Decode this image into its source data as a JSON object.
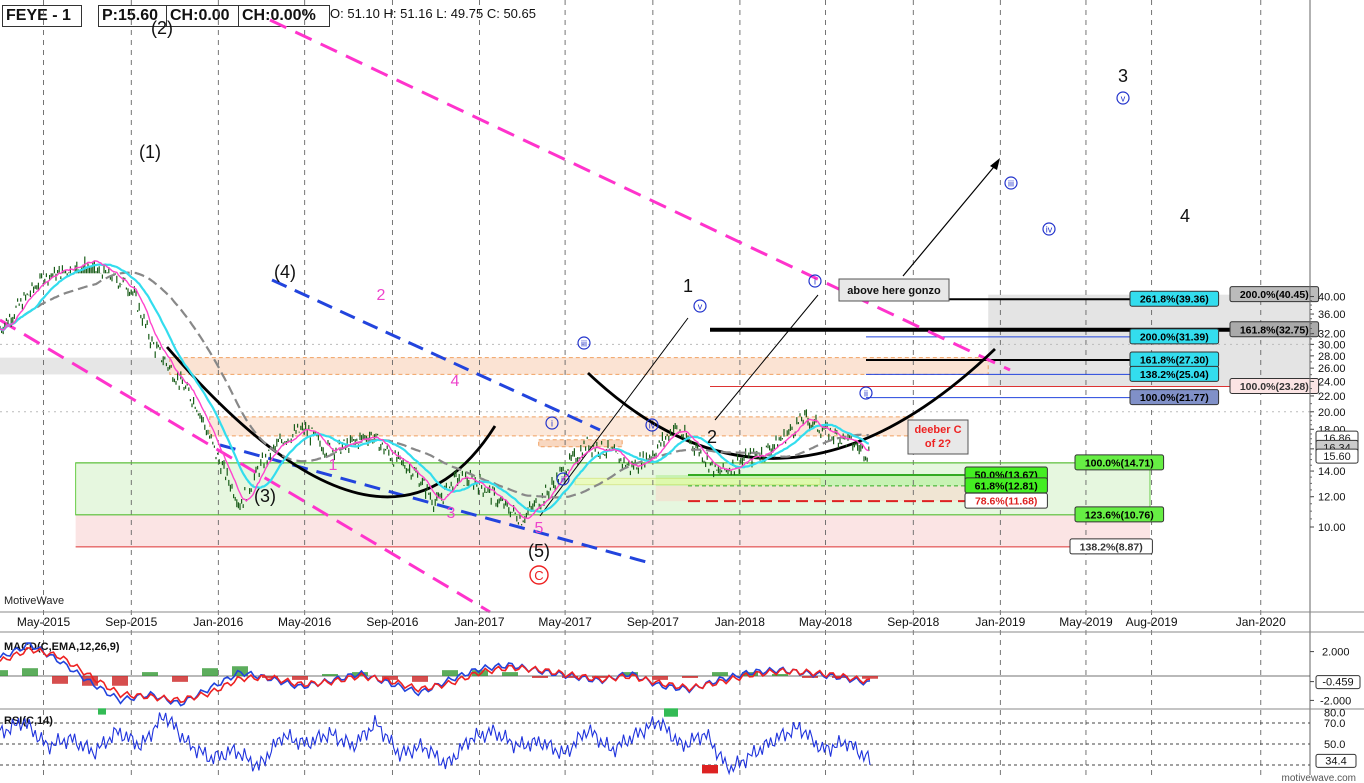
{
  "header": {
    "symbol": "FEYE - 1",
    "price": "P:15.60",
    "change": "CH:0.00",
    "change_pct": "CH:0.00%",
    "ohlc": "O: 51.10  H: 51.16  L: 49.75  C: 50.65"
  },
  "watermark_left": "MotiveWave",
  "watermark_right": "motivewave.com",
  "colors": {
    "price_bar": "#1a5e1a",
    "ma_fast": "#ff44cc",
    "ma_mid": "#33ddee",
    "ma_slow": "#888888",
    "trend_magenta": "#ff33cc",
    "trend_blue": "#2244dd",
    "macd": "#2244dd",
    "signal": "#ee2222",
    "rsi": "#1f33dd",
    "label_wave": "#111111",
    "label_magenta": "#ee44cc",
    "label_circle": "#2233cc"
  },
  "chart_data": [
    {
      "type": "line",
      "panel": "price",
      "scale": "log",
      "x_ticks": [
        "May-2015",
        "Sep-2015",
        "Jan-2016",
        "May-2016",
        "Sep-2016",
        "Jan-2017",
        "May-2017",
        "Sep-2017",
        "Jan-2018",
        "May-2018",
        "Sep-2018",
        "Jan-2019",
        "May-2019",
        "Aug-2019",
        "Jan-2020"
      ],
      "x_range": [
        "2015-03",
        "2020-03"
      ],
      "y_ticks": [
        "10.00",
        "12.00",
        "14.00",
        "16.00",
        "18.00",
        "20.00",
        "22.00",
        "24.00",
        "26.00",
        "28.00",
        "30.00",
        "32.00",
        "36.00",
        "40.00"
      ],
      "ylim": [
        8.3,
        47
      ],
      "price_badges": [
        "16.86",
        "16.34",
        "15.60"
      ],
      "series": [
        {
          "kind": "close",
          "x": [
            "2015-03",
            "2015-05",
            "2015-07",
            "2015-09",
            "2015-10",
            "2015-11",
            "2015-12",
            "2016-01",
            "2016-02",
            "2016-03",
            "2016-04",
            "2016-05",
            "2016-06",
            "2016-07",
            "2016-08",
            "2016-09",
            "2016-10",
            "2016-11",
            "2016-12",
            "2017-01",
            "2017-02",
            "2017-03",
            "2017-04",
            "2017-05",
            "2017-06",
            "2017-07",
            "2017-08",
            "2017-09",
            "2017-10",
            "2017-11",
            "2017-12",
            "2018-01",
            "2018-02",
            "2018-03",
            "2018-04",
            "2018-05",
            "2018-06",
            "2018-07"
          ],
          "values": [
            33,
            45,
            50,
            42,
            30,
            25,
            21,
            15,
            11.5,
            14.5,
            17,
            18,
            16,
            16.3,
            17.5,
            15.2,
            14,
            11.5,
            13.5,
            13,
            11.5,
            10.5,
            12,
            14.2,
            16.5,
            15.8,
            14.3,
            15.6,
            18.2,
            16.2,
            13.8,
            14.8,
            15.6,
            17,
            19.3,
            17.8,
            16.8,
            15.6
          ]
        }
      ],
      "horizontal_levels": [
        {
          "label": "261.8%(39.36)",
          "value": 39.36
        },
        {
          "label": "200.0%(40.45)",
          "value": 40.45
        },
        {
          "label": "161.8%(32.75)",
          "value": 32.75
        },
        {
          "label": "200.0%(31.39)",
          "value": 31.39
        },
        {
          "label": "161.8%(27.30)",
          "value": 27.3
        },
        {
          "label": "138.2%(25.04)",
          "value": 25.04
        },
        {
          "label": "100.0%(23.28)",
          "value": 23.28
        },
        {
          "label": "100.0%(21.77)",
          "value": 21.77
        },
        {
          "label": "100.0%(14.71)",
          "value": 14.71
        },
        {
          "label": "50.0%(13.67)",
          "value": 13.67
        },
        {
          "label": "61.8%(12.81)",
          "value": 12.81
        },
        {
          "label": "78.6%(11.68)",
          "value": 11.68
        },
        {
          "label": "123.6%(10.76)",
          "value": 10.76
        },
        {
          "label": "138.2%(8.87)",
          "value": 8.87
        }
      ],
      "wave_labels": [
        "(1)",
        "(2)",
        "(3)",
        "(4)",
        "(5)",
        "1",
        "2",
        "3",
        "4",
        "1",
        "2",
        "3",
        "4",
        "5",
        "i",
        "ii",
        "iii",
        "iv",
        "v",
        "C"
      ],
      "annotations": [
        "above here gonzo",
        "deeber C",
        "of 2?"
      ]
    },
    {
      "type": "line",
      "panel": "macd",
      "title": "MACD(C,EMA,12,26,9)",
      "y_ticks": [
        "2.000",
        "-0.459",
        "-2.000"
      ],
      "series": [
        {
          "name": "MACD",
          "values": [
            1.5,
            2.6,
            1.2,
            -0.5,
            -2.0,
            -1.5,
            -2.3,
            -1.0,
            0.3,
            -0.2,
            -0.9,
            -0.4,
            0.2,
            -0.6,
            -1.4,
            -0.3,
            0.6,
            0.9,
            0.4,
            0.0,
            -0.4,
            0.2,
            -0.8,
            -1.1,
            -0.3,
            0.3,
            0.5,
            0.2,
            -0.1,
            -0.6
          ]
        },
        {
          "name": "Signal",
          "values": [
            1.2,
            2.2,
            1.6,
            0.0,
            -1.5,
            -1.7,
            -2.0,
            -1.4,
            -0.2,
            -0.1,
            -0.7,
            -0.5,
            0.0,
            -0.4,
            -1.1,
            -0.6,
            0.3,
            0.7,
            0.5,
            0.1,
            -0.3,
            0.0,
            -0.6,
            -1.0,
            -0.5,
            0.1,
            0.4,
            0.3,
            0.0,
            -0.459
          ]
        }
      ]
    },
    {
      "type": "line",
      "panel": "rsi",
      "title": "RSI(C,14)",
      "y_ticks": [
        "80.0",
        "70.0",
        "50.0",
        "34.4"
      ],
      "series": [
        {
          "name": "RSI",
          "values": [
            60,
            72,
            48,
            55,
            42,
            62,
            48,
            78,
            50,
            36,
            44,
            28,
            58,
            50,
            60,
            48,
            70,
            40,
            48,
            30,
            55,
            62,
            48,
            52,
            40,
            64,
            44,
            58,
            72,
            48,
            60,
            25,
            40,
            55,
            66,
            44,
            52,
            34.4
          ]
        }
      ]
    }
  ]
}
